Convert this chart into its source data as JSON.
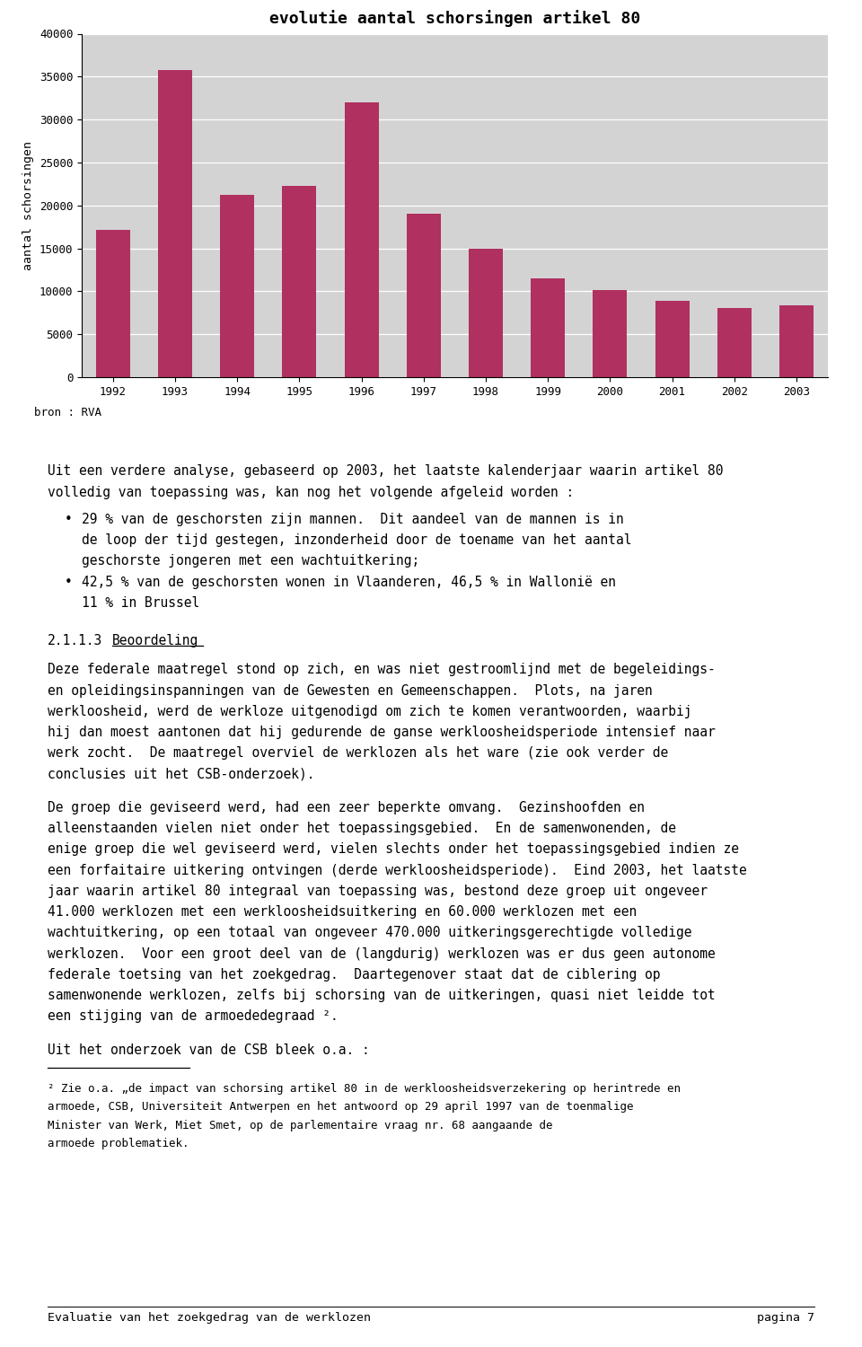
{
  "title": "evolutie aantal schorsingen artikel 80",
  "years": [
    1992,
    1993,
    1994,
    1995,
    1996,
    1997,
    1998,
    1999,
    2000,
    2001,
    2002,
    2003
  ],
  "values": [
    17200,
    35800,
    21200,
    22300,
    32000,
    19000,
    15000,
    11500,
    10100,
    8900,
    8100,
    8400
  ],
  "bar_color": "#b03060",
  "ylabel": "aantal schorsingen",
  "ylim": [
    0,
    40000
  ],
  "yticks": [
    0,
    5000,
    10000,
    15000,
    20000,
    25000,
    30000,
    35000,
    40000
  ],
  "chart_bg": "#d3d3d3",
  "source_text": "bron : RVA",
  "intro_lines": [
    "Uit een verdere analyse, gebaseerd op 2003, het laatste kalenderjaar waarin artikel 80",
    "volledig van toepassing was, kan nog het volgende afgeleid worden :"
  ],
  "bullet1_line1": "29 % van de geschorsten zijn mannen.  Dit aandeel van de mannen is in",
  "bullet1_lines": [
    "de loop der tijd gestegen, inzonderheid door de toename van het aantal",
    "geschorste jongeren met een wachtuitkering;"
  ],
  "bullet2_line1": "42,5 % van de geschorsten wonen in Vlaanderen, 46,5 % in Wallonië en",
  "bullet2_lines": [
    "11 % in Brussel"
  ],
  "section_num": "2.1.1.3",
  "section_heading": "Beoordeling",
  "section_body_lines": [
    "Deze federale maatregel stond op zich, en was niet gestroomlijnd met de begeleidings-",
    "en opleidingsinspanningen van de Gewesten en Gemeenschappen.  Plots, na jaren",
    "werkloosheid, werd de werkloze uitgenodigd om zich te komen verantwoorden, waarbij",
    "hij dan moest aantonen dat hij gedurende de ganse werkloosheidsperiode intensief naar",
    "werk zocht.  De maatregel overviel de werklozen als het ware (zie ook verder de",
    "conclusies uit het CSB-onderzoek)."
  ],
  "para2_lines": [
    "De groep die geviseerd werd, had een zeer beperkte omvang.  Gezinshoofden en",
    "alleenstaanden vielen niet onder het toepassingsgebied.  En de samenwonenden, de",
    "enige groep die wel geviseerd werd, vielen slechts onder het toepassingsgebied indien ze",
    "een forfaitaire uitkering ontvingen (derde werkloosheidsperiode).  Eind 2003, het laatste",
    "jaar waarin artikel 80 integraal van toepassing was, bestond deze groep uit ongeveer",
    "41.000 werklozen met een werkloosheidsuitkering en 60.000 werklozen met een",
    "wachtuitkering, op een totaal van ongeveer 470.000 uitkeringsgerechtigde volledige",
    "werklozen.  Voor een groot deel van de (langdurig) werklozen was er dus geen autonome",
    "federale toetsing van het zoekgedrag.  Daartegenover staat dat de ciblering op",
    "samenwonende werklozen, zelfs bij schorsing van de uitkeringen, quasi niet leidde tot",
    "een stijging van de armoededegraad ²."
  ],
  "para3": "Uit het onderzoek van de CSB bleek o.a. :",
  "footnote_lines": [
    "² Zie o.a. „de impact van schorsing artikel 80 in de werkloosheidsverzekering op herintrede en",
    "armoede, CSB, Universiteit Antwerpen en het antwoord op 29 april 1997 van de toenmalige",
    "Minister van Werk, Miet Smet, op de parlementaire vraag nr. 68 aangaande de",
    "armoede problematiek."
  ],
  "footer_left": "Evaluatie van het zoekgedrag van de werklozen",
  "footer_right": "pagina 7",
  "page_bg": "#ffffff",
  "body_font_size": 10.5,
  "footnote_font_size": 9.0,
  "title_font_size": 13
}
